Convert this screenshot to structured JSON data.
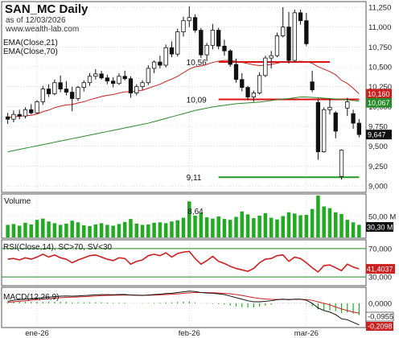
{
  "colors": {
    "bull": "#3cb043",
    "bear": "#111111",
    "ema21": "#cc1f1f",
    "ema70": "#2a8a2a",
    "support": "#229922",
    "resistance": "#dd1111",
    "volume": "#22aa22",
    "rsi": "#cc1f1f",
    "rsi_band": "#1a8a1a",
    "macd": "#111111",
    "signal": "#cc1f1f",
    "hist": "#22aa22",
    "grid": "#bbbbbb"
  },
  "header": {
    "symbol_title": "SAN_MC Daily",
    "as_of": "as of 12/03/2026",
    "watermark": "www.wealth-lab.com",
    "ema21_label": "EMA(Close,21)",
    "ema70_label": "EMA(Close,70)"
  },
  "chart_data": [
    {
      "type": "candlestick",
      "panel": "price",
      "ylim": [
        8950,
        11300
      ],
      "y_ticks": [
        "11,250",
        "11,000",
        "10,750",
        "10,500",
        "10,250",
        "10,000",
        "9,750",
        "9,500",
        "9,250",
        "9,000"
      ],
      "y_tick_values": [
        11250,
        11000,
        10750,
        10500,
        10250,
        10000,
        9750,
        9500,
        9250,
        9000
      ],
      "x_labels": [
        "ene-26",
        "feb-26",
        "mar-26"
      ],
      "x_label_index": [
        5,
        31,
        51
      ],
      "ohlc": [
        [
          9870,
          9920,
          9780,
          9840
        ],
        [
          9840,
          9950,
          9800,
          9900
        ],
        [
          9900,
          9960,
          9840,
          9880
        ],
        [
          9880,
          9990,
          9850,
          9960
        ],
        [
          9960,
          10030,
          9900,
          9920
        ],
        [
          9920,
          10080,
          9910,
          10060
        ],
        [
          10060,
          10260,
          10020,
          10220
        ],
        [
          10220,
          10280,
          10120,
          10160
        ],
        [
          10160,
          10340,
          10140,
          10300
        ],
        [
          10300,
          10390,
          10180,
          10220
        ],
        [
          10220,
          10320,
          10140,
          10180
        ],
        [
          10180,
          10250,
          9940,
          10100
        ],
        [
          10100,
          10260,
          10070,
          10240
        ],
        [
          10240,
          10330,
          10190,
          10300
        ],
        [
          10300,
          10420,
          10260,
          10380
        ],
        [
          10380,
          10470,
          10340,
          10410
        ],
        [
          10410,
          10450,
          10340,
          10360
        ],
        [
          10360,
          10400,
          10280,
          10320
        ],
        [
          10320,
          10370,
          10240,
          10290
        ],
        [
          10290,
          10420,
          10270,
          10380
        ],
        [
          10380,
          10450,
          10330,
          10350
        ],
        [
          10350,
          10380,
          10110,
          10170
        ],
        [
          10170,
          10280,
          10140,
          10250
        ],
        [
          10250,
          10330,
          10210,
          10300
        ],
        [
          10300,
          10520,
          10270,
          10480
        ],
        [
          10480,
          10580,
          10420,
          10560
        ],
        [
          10560,
          10640,
          10480,
          10520
        ],
        [
          10520,
          10780,
          10490,
          10740
        ],
        [
          10740,
          10820,
          10620,
          10660
        ],
        [
          10660,
          10980,
          10630,
          10940
        ],
        [
          10940,
          11130,
          10880,
          11080
        ],
        [
          11080,
          11260,
          11000,
          11120
        ],
        [
          11120,
          11160,
          10930,
          10960
        ],
        [
          10960,
          10990,
          10610,
          10650
        ],
        [
          10650,
          10800,
          10570,
          10770
        ],
        [
          10770,
          11040,
          10720,
          10960
        ],
        [
          10960,
          10990,
          10720,
          10760
        ],
        [
          10760,
          10840,
          10640,
          10700
        ],
        [
          10700,
          10720,
          10500,
          10530
        ],
        [
          10530,
          10600,
          10300,
          10340
        ],
        [
          10340,
          10420,
          10190,
          10240
        ],
        [
          10240,
          10260,
          10080,
          10120
        ],
        [
          10120,
          10200,
          10060,
          10170
        ],
        [
          10170,
          10430,
          10150,
          10390
        ],
        [
          10390,
          10640,
          10370,
          10610
        ],
        [
          10610,
          10700,
          10480,
          10640
        ],
        [
          10640,
          10930,
          10620,
          10890
        ],
        [
          10890,
          11250,
          10870,
          11000
        ],
        [
          11000,
          11190,
          10540,
          10580
        ],
        [
          10580,
          11220,
          10560,
          11180
        ],
        [
          11180,
          11220,
          11030,
          11080
        ],
        [
          11080,
          11180,
          10760,
          10790
        ],
        [
          10310,
          10450,
          10180,
          10210
        ],
        [
          10050,
          10100,
          9330,
          9430
        ],
        [
          9430,
          9990,
          9420,
          9960
        ],
        [
          9960,
          10100,
          9900,
          9990
        ],
        [
          9920,
          9940,
          9600,
          9690
        ],
        [
          9120,
          9460,
          9080,
          9450
        ],
        [
          9980,
          10110,
          9880,
          10060
        ],
        [
          9910,
          9960,
          9720,
          9790
        ],
        [
          9790,
          9840,
          9610,
          9647
        ]
      ],
      "ema21": [
        9860,
        9870,
        9875,
        9885,
        9890,
        9905,
        9935,
        9955,
        9985,
        10005,
        10020,
        10025,
        10045,
        10060,
        10085,
        10105,
        10125,
        10140,
        10150,
        10170,
        10185,
        10185,
        10195,
        10205,
        10230,
        10255,
        10280,
        10315,
        10345,
        10380,
        10425,
        10470,
        10500,
        10510,
        10530,
        10555,
        10570,
        10580,
        10580,
        10570,
        10555,
        10540,
        10525,
        10515,
        10520,
        10530,
        10545,
        10560,
        10560,
        10565,
        10570,
        10565,
        10545,
        10500,
        10470,
        10440,
        10400,
        10330,
        10290,
        10230,
        10160
      ],
      "ema70": [
        9430,
        9445,
        9460,
        9475,
        9490,
        9505,
        9520,
        9535,
        9550,
        9565,
        9580,
        9595,
        9610,
        9625,
        9640,
        9655,
        9670,
        9685,
        9700,
        9715,
        9730,
        9745,
        9760,
        9775,
        9790,
        9810,
        9830,
        9850,
        9870,
        9890,
        9910,
        9930,
        9950,
        9965,
        9980,
        9995,
        10005,
        10015,
        10025,
        10035,
        10040,
        10045,
        10050,
        10055,
        10065,
        10075,
        10085,
        10095,
        10100,
        10110,
        10120,
        10120,
        10115,
        10110,
        10105,
        10100,
        10095,
        10090,
        10085,
        10075,
        10067
      ],
      "levels": [
        {
          "label": "10,56",
          "value": 10560,
          "color": "resistance",
          "from_index": 36,
          "to_index": 55
        },
        {
          "label": "10,09",
          "value": 10090,
          "color": "resistance",
          "from_index": 36,
          "to_index": 60
        },
        {
          "label": "9,11",
          "value": 9110,
          "color": "support",
          "from_index": 36,
          "to_index": 60
        }
      ],
      "last_values": {
        "ema21": {
          "text": "10,160",
          "value": 10160
        },
        "ema70": {
          "text": "10,067",
          "value": 10067
        },
        "close": {
          "text": "9,647",
          "value": 9647
        }
      }
    },
    {
      "type": "bar",
      "panel": "volume",
      "title": "Volume",
      "annotation": "8,64",
      "annotation_index": 31,
      "y_ticks": [
        "50,00 M"
      ],
      "last_value": "30,30 M",
      "ylim": [
        0,
        100
      ],
      "values": [
        30,
        32,
        28,
        35,
        31,
        42,
        45,
        38,
        34,
        30,
        33,
        40,
        36,
        29,
        27,
        31,
        34,
        30,
        28,
        32,
        37,
        44,
        33,
        30,
        31,
        35,
        36,
        34,
        38,
        41,
        47,
        86,
        52,
        58,
        48,
        45,
        50,
        44,
        42,
        49,
        62,
        55,
        46,
        52,
        58,
        47,
        43,
        51,
        60,
        57,
        53,
        54,
        68,
        100,
        74,
        70,
        60,
        56,
        42,
        36,
        30
      ]
    },
    {
      "type": "line",
      "panel": "rsi",
      "title": "RSI(Close,14), SC>70, SV<30",
      "ylim": [
        20,
        80
      ],
      "bands": [
        70,
        30
      ],
      "y_ticks": [
        "70,000",
        "30,000"
      ],
      "last_value": "41,4037",
      "values": [
        55,
        56,
        54,
        57,
        55,
        58,
        62,
        58,
        61,
        57,
        55,
        50,
        54,
        57,
        60,
        61,
        58,
        55,
        53,
        57,
        56,
        48,
        52,
        54,
        60,
        62,
        60,
        64,
        58,
        63,
        65,
        66,
        56,
        48,
        53,
        59,
        52,
        49,
        45,
        42,
        40,
        38,
        42,
        50,
        55,
        56,
        60,
        61,
        52,
        58,
        56,
        50,
        43,
        37,
        46,
        47,
        43,
        39,
        48,
        44,
        41.4
      ]
    },
    {
      "type": "line",
      "panel": "macd",
      "title": "MACD(12,26,9)",
      "ylim": [
        -0.22,
        0.14
      ],
      "y_ticks": [
        "0,0000"
      ],
      "last_values": {
        "signal": "-0,0955",
        "macd": "-0,2098"
      },
      "macd": [
        0.02,
        0.03,
        0.035,
        0.04,
        0.045,
        0.05,
        0.055,
        0.06,
        0.065,
        0.07,
        0.072,
        0.07,
        0.072,
        0.075,
        0.078,
        0.082,
        0.084,
        0.084,
        0.083,
        0.085,
        0.086,
        0.08,
        0.078,
        0.076,
        0.08,
        0.085,
        0.088,
        0.095,
        0.098,
        0.105,
        0.112,
        0.118,
        0.115,
        0.105,
        0.1,
        0.098,
        0.092,
        0.085,
        0.07,
        0.055,
        0.04,
        0.025,
        0.015,
        0.015,
        0.02,
        0.025,
        0.035,
        0.04,
        0.035,
        0.04,
        0.04,
        0.03,
        0.0,
        -0.045,
        -0.07,
        -0.085,
        -0.11,
        -0.15,
        -0.16,
        -0.185,
        -0.2098
      ],
      "signal": [
        0.01,
        0.015,
        0.02,
        0.025,
        0.03,
        0.035,
        0.04,
        0.045,
        0.05,
        0.055,
        0.058,
        0.06,
        0.062,
        0.065,
        0.068,
        0.071,
        0.074,
        0.076,
        0.078,
        0.079,
        0.08,
        0.08,
        0.079,
        0.078,
        0.078,
        0.08,
        0.082,
        0.085,
        0.088,
        0.092,
        0.097,
        0.102,
        0.105,
        0.105,
        0.104,
        0.103,
        0.1,
        0.097,
        0.092,
        0.085,
        0.076,
        0.066,
        0.055,
        0.047,
        0.042,
        0.038,
        0.037,
        0.038,
        0.037,
        0.038,
        0.038,
        0.036,
        0.029,
        0.014,
        0.0,
        -0.015,
        -0.035,
        -0.055,
        -0.07,
        -0.085,
        -0.0955
      ]
    }
  ]
}
